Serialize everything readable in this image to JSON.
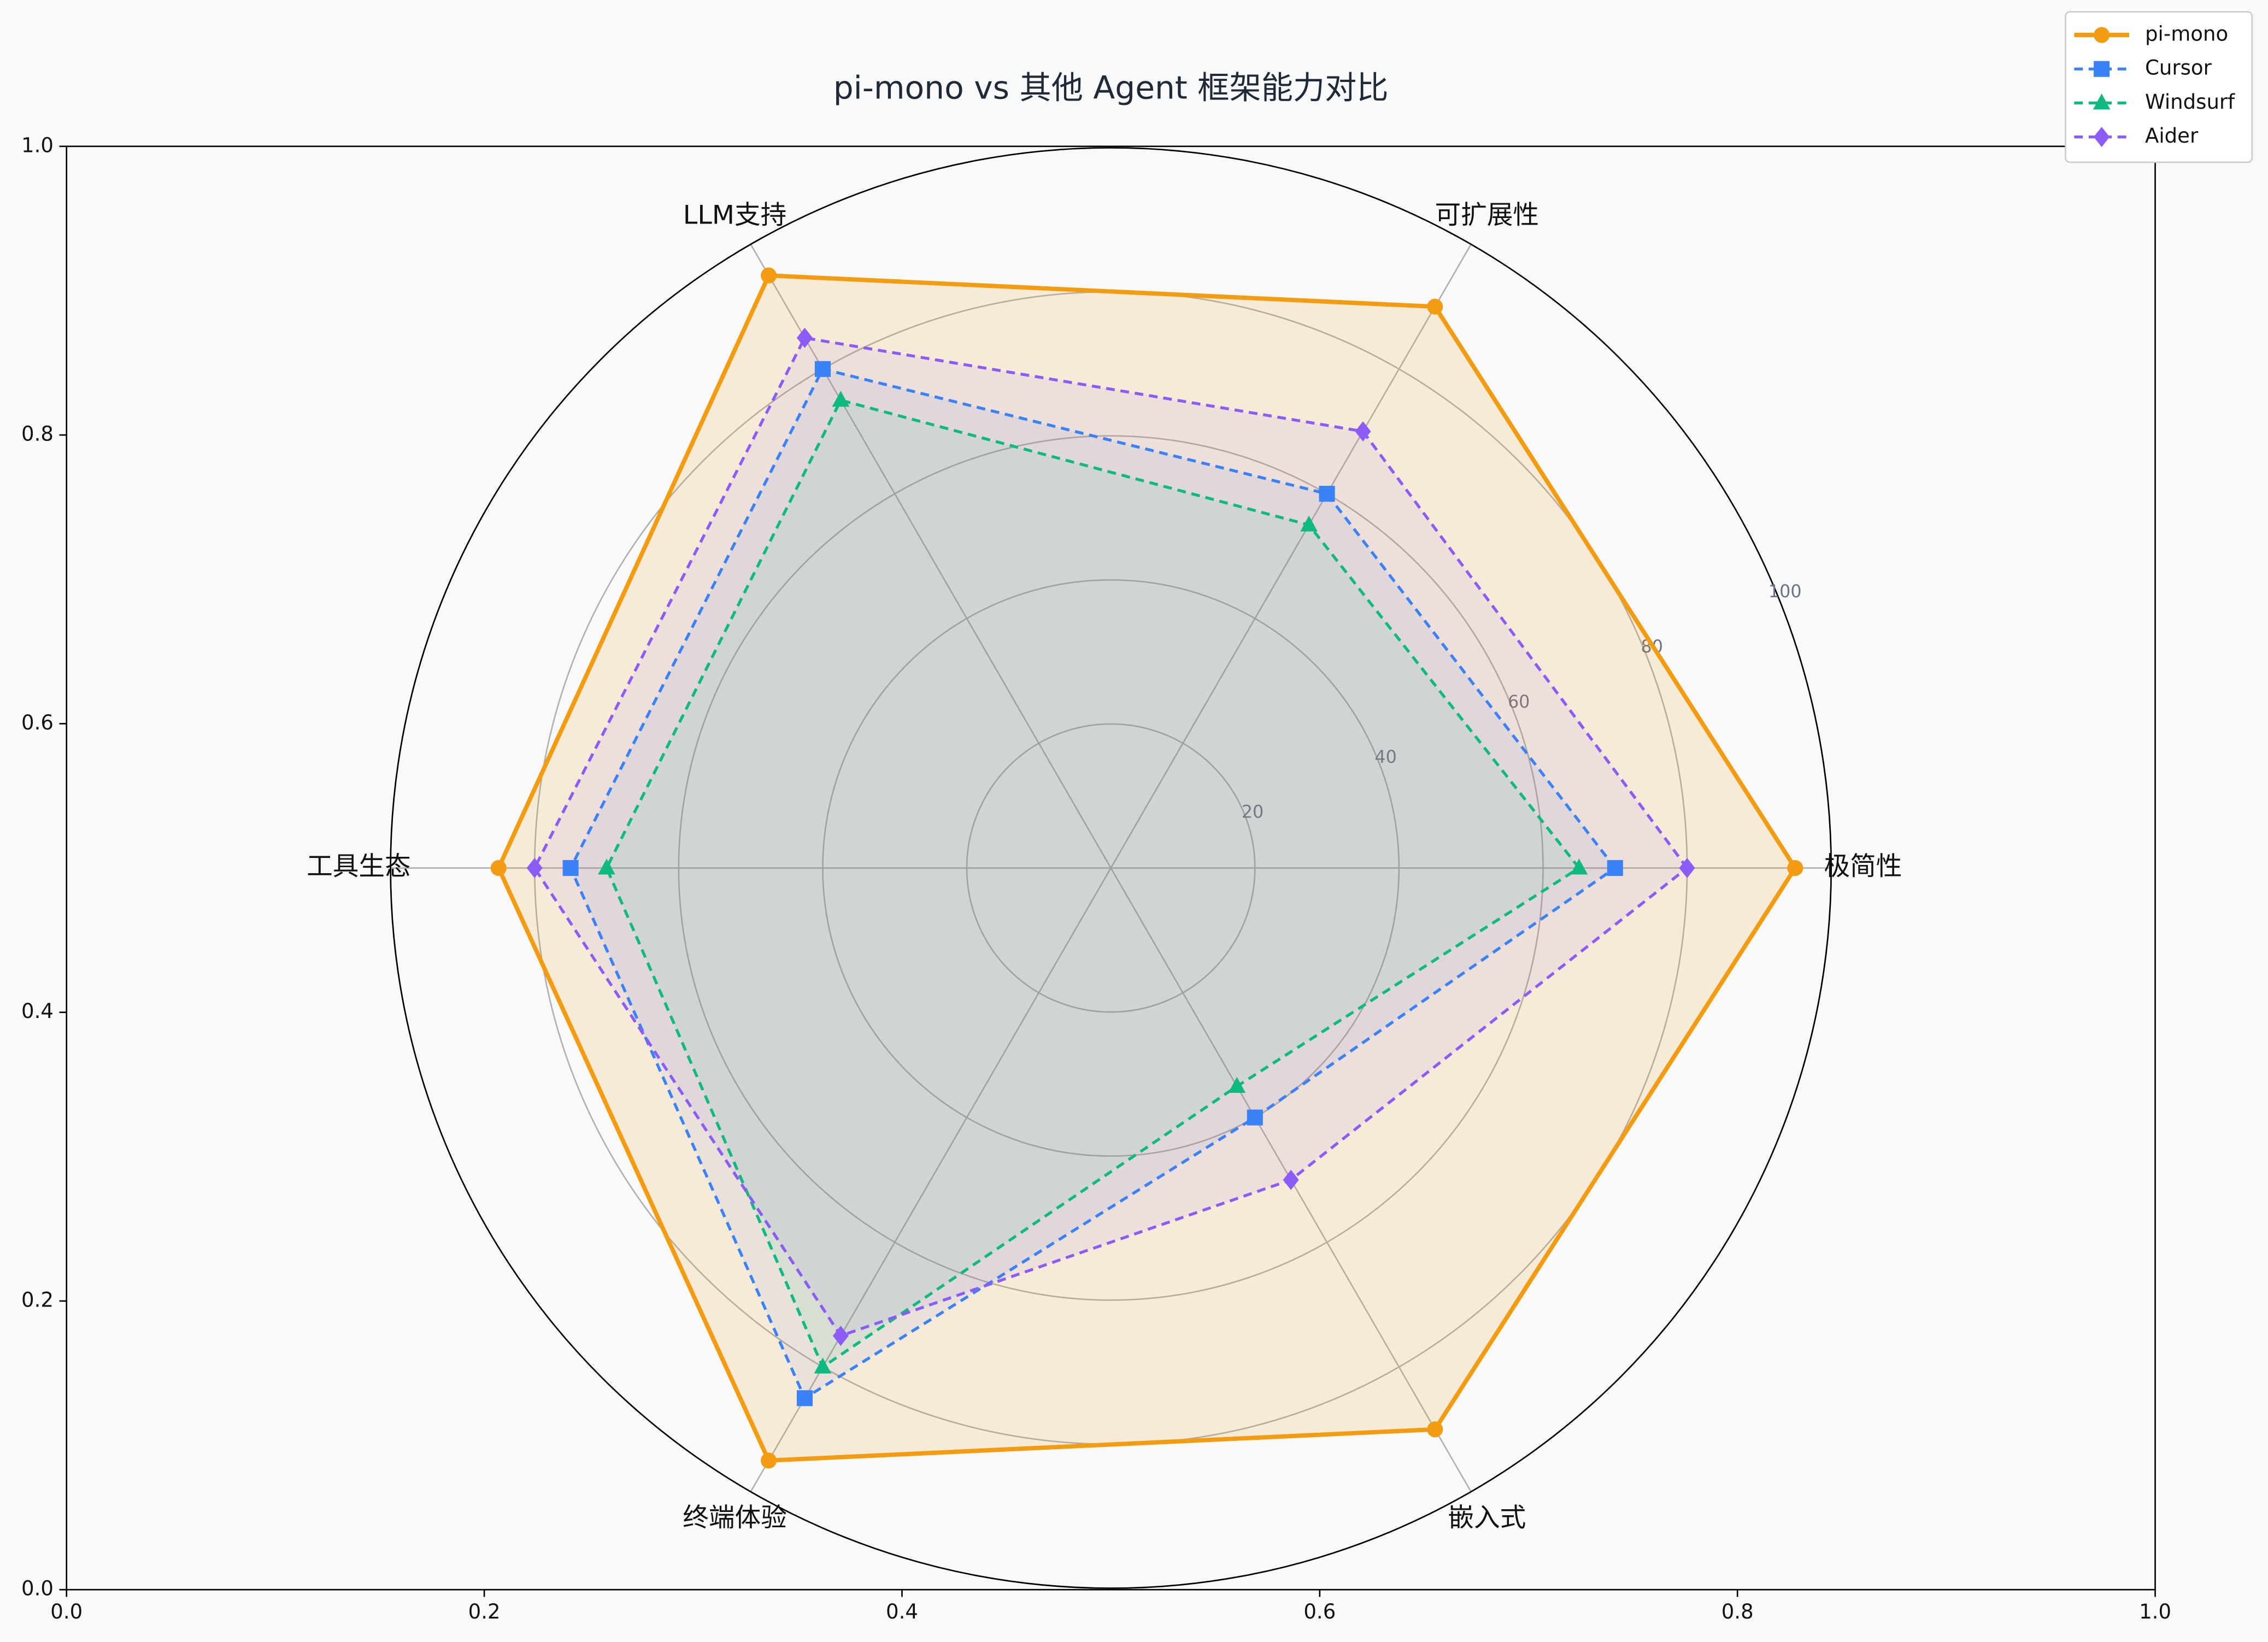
{
  "chart_data": {
    "type": "radar",
    "title": "pi-mono vs 其他 Agent 框架能力对比",
    "categories": [
      "极简性",
      "可扩展性",
      "LLM支持",
      "工具生态",
      "终端体验",
      "嵌入式"
    ],
    "series": [
      {
        "name": "pi-mono",
        "color": "#f39c12",
        "linestyle": "solid",
        "marker": "circle",
        "values": [
          95,
          90,
          95,
          85,
          95,
          90
        ]
      },
      {
        "name": "Cursor",
        "color": "#3b82f6",
        "linestyle": "dashed",
        "marker": "square",
        "values": [
          70,
          60,
          80,
          75,
          85,
          40
        ]
      },
      {
        "name": "Windsurf",
        "color": "#10b981",
        "linestyle": "dashed",
        "marker": "triangle",
        "values": [
          65,
          55,
          75,
          70,
          80,
          35
        ]
      },
      {
        "name": "Aider",
        "color": "#8b5cf6",
        "linestyle": "dashed",
        "marker": "diamond",
        "values": [
          80,
          70,
          85,
          80,
          75,
          50
        ]
      }
    ],
    "rlim": [
      0,
      100
    ],
    "rticks": [
      20,
      40,
      60,
      80,
      100
    ],
    "grid": true,
    "xlim": [
      0,
      1
    ],
    "xticks": [
      {
        "value": 0,
        "label": "0.0"
      },
      0.2,
      0.4,
      0.6,
      0.8,
      {
        "value": 1,
        "label": "1.0"
      }
    ],
    "ylim": [
      0,
      1
    ],
    "yticks": [
      {
        "value": 0,
        "label": "0.0"
      },
      0.2,
      0.4,
      0.6,
      0.8,
      {
        "value": 1,
        "label": "1.0"
      }
    ],
    "legend": "upper right"
  }
}
